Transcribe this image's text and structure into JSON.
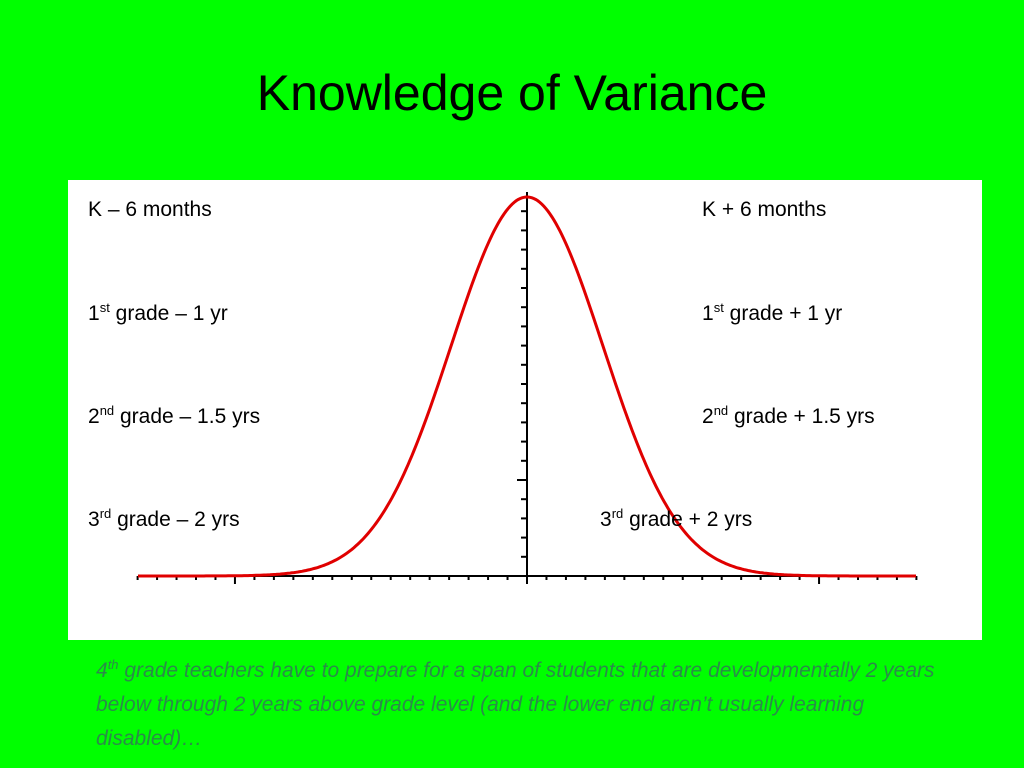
{
  "title": "Knowledge of Variance",
  "left_labels": [
    {
      "text": "K – 6 months"
    },
    {
      "base": "1",
      "sup": "st",
      "text": " grade – 1 yr"
    },
    {
      "base": "2",
      "sup": "nd",
      "text": " grade – 1.5 yrs"
    },
    {
      "base": "3",
      "sup": "rd",
      "text": " grade – 2 yrs"
    }
  ],
  "right_labels": [
    {
      "text": "K + 6 months"
    },
    {
      "base": "1",
      "sup": "st",
      "text": " grade + 1 yr"
    },
    {
      "base": "2",
      "sup": "nd",
      "text": " grade + 1.5 yrs"
    },
    {
      "base": "3",
      "sup": "rd",
      "text": " grade + 2 yrs"
    }
  ],
  "caption": {
    "base": "4",
    "sup": "th",
    "text": " grade teachers have to prepare for a span of students that are developmentally 2 years below through 2 years above grade level (and the lower end aren’t usually learning disabled)…"
  }
}
